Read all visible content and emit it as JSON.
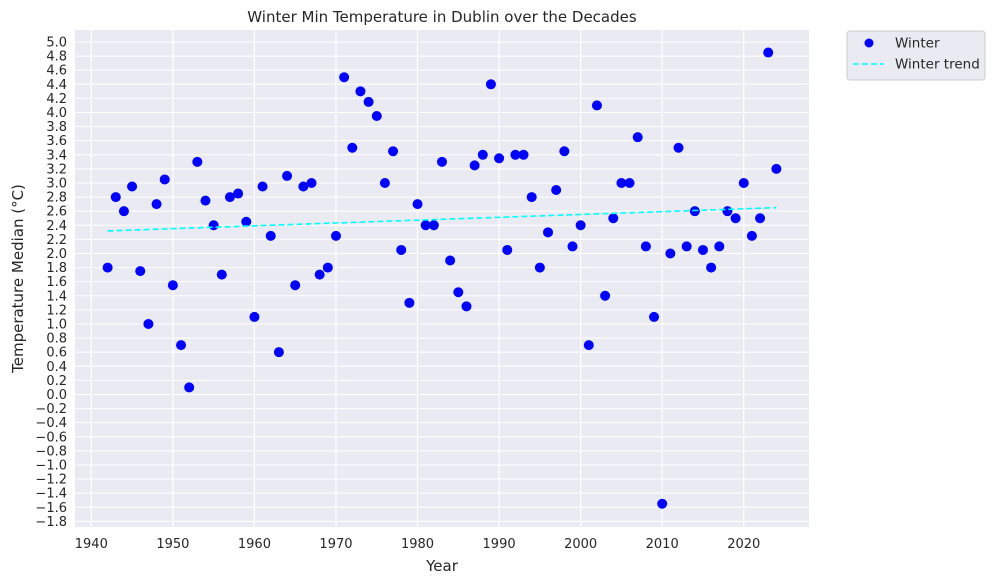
{
  "chart_data": {
    "type": "scatter",
    "title": "Winter Min Temperature in Dublin over the Decades",
    "xlabel": "Year",
    "ylabel": "Temperature Median (°C)",
    "xlim": [
      1938,
      2028
    ],
    "ylim": [
      -1.88,
      5.17
    ],
    "x_ticks": [
      1940,
      1950,
      1960,
      1970,
      1980,
      1990,
      2000,
      2010,
      2020
    ],
    "x_tick_labels": [
      "1940",
      "1950",
      "1960",
      "1970",
      "1980",
      "1990",
      "2000",
      "2010",
      "2020"
    ],
    "y_ticks": [
      -1.8,
      -1.6,
      -1.4,
      -1.2,
      -1.0,
      -0.8,
      -0.6,
      -0.4,
      -0.2,
      0.0,
      0.2,
      0.4,
      0.6,
      0.8,
      1.0,
      1.2,
      1.4,
      1.6,
      1.8,
      2.0,
      2.2,
      2.4,
      2.6,
      2.8,
      3.0,
      3.2,
      3.4,
      3.6,
      3.8,
      4.0,
      4.2,
      4.4,
      4.6,
      4.8,
      5.0
    ],
    "y_tick_labels": [
      "−1.8",
      "−1.6",
      "−1.4",
      "−1.2",
      "−1.0",
      "−0.8",
      "−0.6",
      "−0.4",
      "−0.2",
      "0.0",
      "0.2",
      "0.4",
      "0.6",
      "0.8",
      "1.0",
      "1.2",
      "1.4",
      "1.6",
      "1.8",
      "2.0",
      "2.2",
      "2.4",
      "2.6",
      "2.8",
      "3.0",
      "3.2",
      "3.4",
      "3.6",
      "3.8",
      "4.0",
      "4.2",
      "4.4",
      "4.6",
      "4.8",
      "5.0"
    ],
    "grid": true,
    "legend_position": "outside-top-right",
    "colors": {
      "background": "#eaeaf2",
      "grid": "#ffffff",
      "points": "#0000ff",
      "trend": "#00ffff",
      "text": "#262626"
    },
    "series": [
      {
        "name": "Winter",
        "kind": "scatter",
        "x": [
          1942,
          1943,
          1944,
          1945,
          1946,
          1947,
          1948,
          1949,
          1950,
          1951,
          1952,
          1953,
          1954,
          1955,
          1956,
          1957,
          1958,
          1959,
          1960,
          1961,
          1962,
          1963,
          1964,
          1965,
          1966,
          1967,
          1968,
          1969,
          1970,
          1971,
          1972,
          1973,
          1974,
          1975,
          1976,
          1977,
          1978,
          1979,
          1980,
          1981,
          1982,
          1983,
          1984,
          1985,
          1986,
          1987,
          1988,
          1989,
          1990,
          1991,
          1992,
          1993,
          1994,
          1995,
          1996,
          1997,
          1998,
          1999,
          2000,
          2001,
          2002,
          2003,
          2004,
          2005,
          2006,
          2007,
          2008,
          2009,
          2010,
          2011,
          2012,
          2013,
          2014,
          2015,
          2016,
          2017,
          2018,
          2019,
          2020,
          2021,
          2022,
          2023,
          2024
        ],
        "y": [
          1.8,
          2.8,
          2.6,
          2.95,
          1.75,
          1.0,
          2.7,
          3.05,
          1.55,
          0.7,
          0.1,
          3.3,
          2.75,
          2.4,
          1.7,
          2.8,
          2.85,
          2.45,
          1.1,
          2.95,
          2.25,
          0.6,
          3.1,
          1.55,
          2.95,
          3.0,
          1.7,
          1.8,
          2.25,
          4.5,
          3.5,
          4.3,
          4.15,
          3.95,
          3.0,
          3.45,
          2.05,
          1.3,
          2.7,
          2.4,
          2.4,
          3.3,
          1.9,
          1.45,
          1.25,
          3.25,
          3.4,
          4.4,
          3.35,
          2.05,
          3.4,
          3.4,
          2.8,
          1.8,
          2.3,
          2.9,
          3.45,
          2.1,
          2.4,
          0.7,
          4.1,
          1.4,
          2.5,
          3.0,
          3.0,
          3.65,
          2.1,
          1.1,
          -1.55,
          2.0,
          3.5,
          2.1,
          2.6,
          2.05,
          1.8,
          2.1,
          2.6,
          2.5,
          3.0,
          2.25,
          2.5,
          4.85,
          3.2
        ]
      },
      {
        "name": "Winter trend",
        "kind": "line",
        "style": "dashed",
        "x": [
          1942,
          2024
        ],
        "y": [
          2.32,
          2.65
        ]
      }
    ]
  }
}
